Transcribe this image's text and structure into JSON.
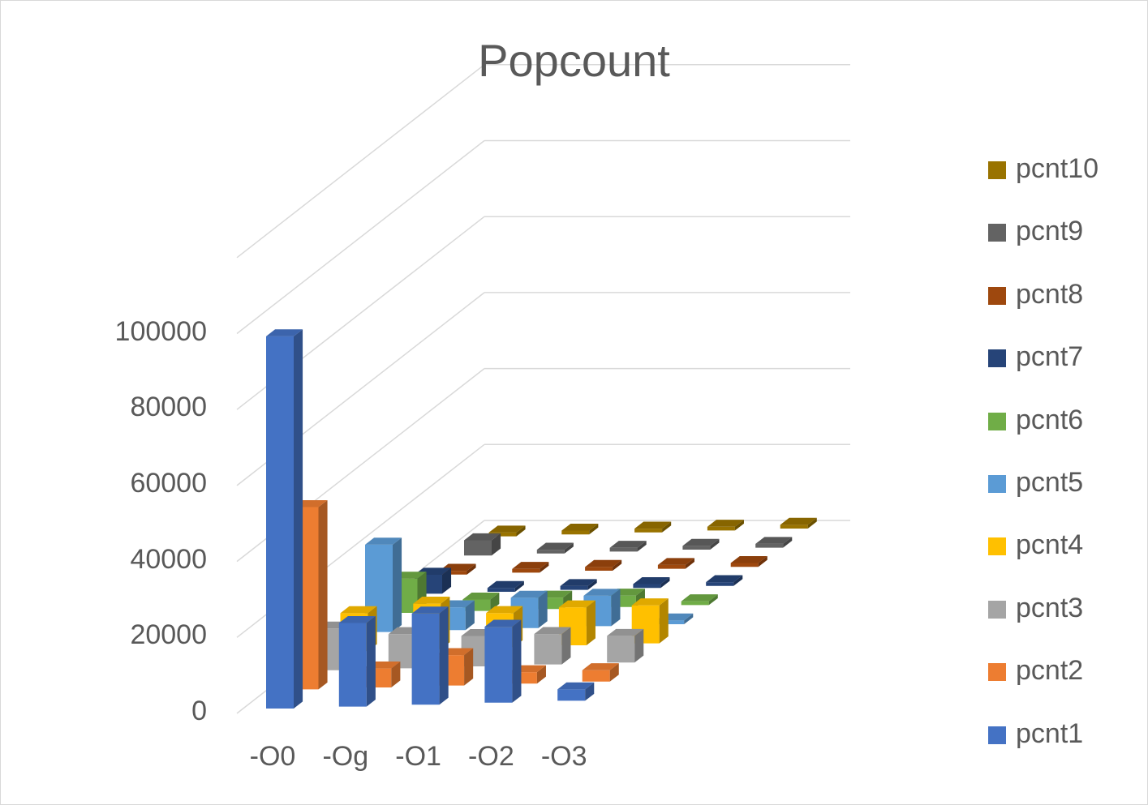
{
  "chart_data": {
    "type": "bar",
    "title": "Popcount",
    "categories": [
      "-O0",
      "-Og",
      "-O1",
      "-O2",
      "-O3"
    ],
    "yticks": [
      "0",
      "20000",
      "40000",
      "60000",
      "80000",
      "100000"
    ],
    "ylim": [
      0,
      100000
    ],
    "grid": true,
    "legend_position": "right",
    "series": [
      {
        "name": "pcnt1",
        "color": "#4472c4",
        "values": [
          98000,
          22000,
          24000,
          20000,
          3000
        ]
      },
      {
        "name": "pcnt2",
        "color": "#ed7d31",
        "values": [
          48000,
          5000,
          8000,
          3000,
          3000
        ]
      },
      {
        "name": "pcnt3",
        "color": "#a5a5a5",
        "values": [
          11000,
          9000,
          8000,
          8000,
          7000
        ]
      },
      {
        "name": "pcnt4",
        "color": "#ffc000",
        "values": [
          10000,
          12000,
          9000,
          10000,
          10000
        ]
      },
      {
        "name": "pcnt5",
        "color": "#5b9bd5",
        "values": [
          23000,
          6000,
          8000,
          8000,
          1000
        ]
      },
      {
        "name": "pcnt6",
        "color": "#70ad47",
        "values": [
          9000,
          3000,
          3000,
          3000,
          1000
        ]
      },
      {
        "name": "pcnt7",
        "color": "#264478",
        "values": [
          5000,
          1000,
          1000,
          1000,
          1000
        ]
      },
      {
        "name": "pcnt8",
        "color": "#9e480e",
        "values": [
          1000,
          1000,
          1000,
          1000,
          1000
        ]
      },
      {
        "name": "pcnt9",
        "color": "#636363",
        "values": [
          4000,
          1000,
          1000,
          1000,
          1000
        ]
      },
      {
        "name": "pcnt10",
        "color": "#997300",
        "values": [
          1000,
          1000,
          1000,
          1000,
          1000
        ]
      }
    ]
  }
}
